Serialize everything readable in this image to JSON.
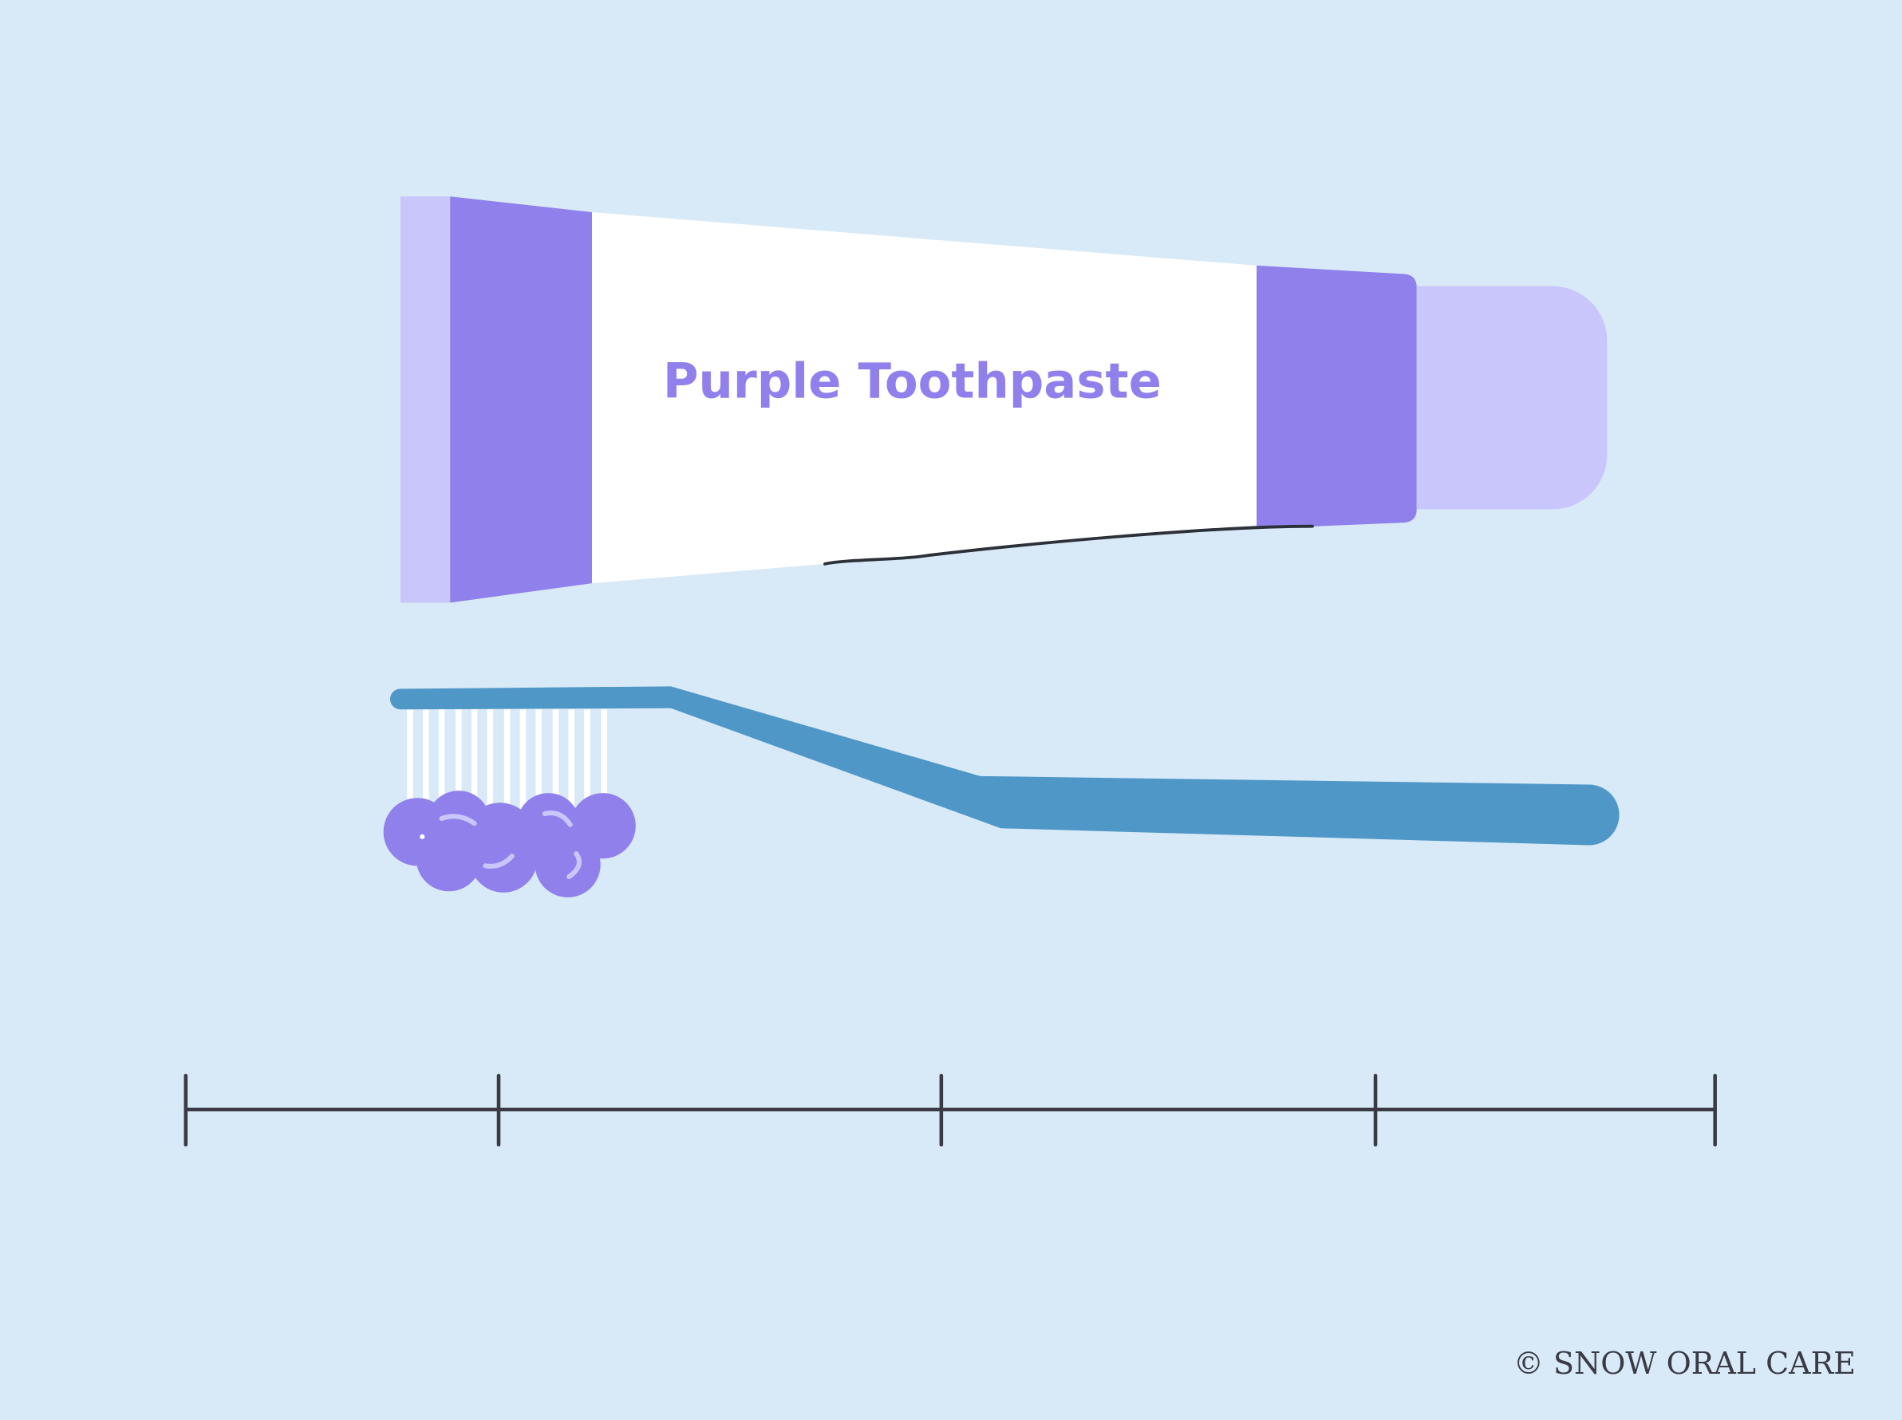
{
  "tube": {
    "label": "Purple Toothpaste"
  },
  "footer": {
    "copyright": "© SNOW ORAL CARE"
  },
  "colors": {
    "background": "#d8e9f7",
    "purple": "#9080eb",
    "light_purple": "#c9c6fb",
    "brush_blue": "#4f97c7",
    "scale_line": "#3a3a44"
  },
  "scale": {
    "tick_count": 5
  }
}
